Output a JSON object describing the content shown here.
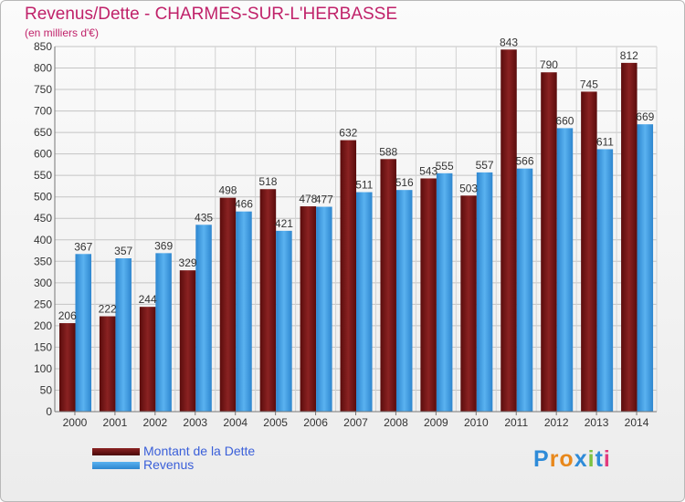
{
  "chart_data": {
    "type": "bar",
    "title": "Revenus/Dette - CHARMES-SUR-L'HERBASSE",
    "subtitle": "(en milliers d'€)",
    "categories": [
      "2000",
      "2001",
      "2002",
      "2003",
      "2004",
      "2005",
      "2006",
      "2007",
      "2008",
      "2009",
      "2010",
      "2011",
      "2012",
      "2013",
      "2014"
    ],
    "series": [
      {
        "name": "Montant de la Dette",
        "color": "#7a1a1a",
        "values": [
          206,
          222,
          244,
          329,
          498,
          518,
          478,
          632,
          588,
          543,
          503,
          843,
          790,
          745,
          812
        ]
      },
      {
        "name": "Revenus",
        "color": "#3d99e0",
        "values": [
          367,
          357,
          369,
          435,
          466,
          421,
          477,
          511,
          516,
          555,
          557,
          566,
          660,
          611,
          669
        ]
      }
    ],
    "ylim": [
      0,
      850
    ],
    "ytick_step": 50,
    "grid": true,
    "legend_position": "bottom-left"
  },
  "logo": {
    "text": "Proxiti"
  }
}
